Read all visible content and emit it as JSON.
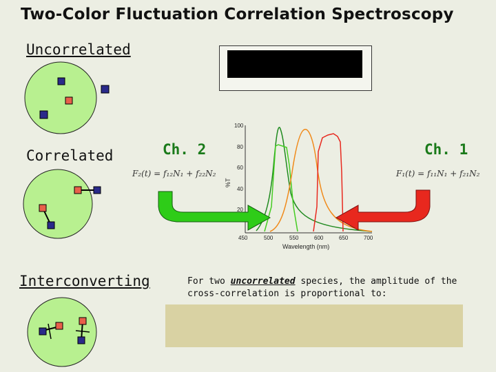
{
  "title": "Two-Color Fluctuation Correlation Spectroscopy",
  "labels": {
    "uncorrelated": "Uncorrelated",
    "correlated": "Correlated",
    "interconverting": "Interconverting"
  },
  "channels": {
    "ch2": "Ch. 2",
    "ch1": "Ch. 1"
  },
  "equations": {
    "f2": "F₂(t) = f₁₂N₁ + f₂₂N₂",
    "f1": "F₁(t) = f₁₁N₁ + f₂₁N₂"
  },
  "spectrum": {
    "yaxis_title": "%T",
    "xaxis_title": "Wavelength (nm)",
    "x_ticks": [
      "450",
      "500",
      "550",
      "600",
      "650",
      "700"
    ],
    "y_ticks": [
      "100",
      "80",
      "60",
      "40",
      "20"
    ]
  },
  "note": {
    "prefix": "For two ",
    "emphasis": "uncorrelated",
    "suffix": " species, the amplitude of the cross-correlation is proportional to:"
  },
  "colors": {
    "green": "#2ecc18",
    "red": "#e8281e",
    "blue_sq": "#2a2a8a",
    "red_sq": "#e8604a",
    "circle": "#b8f090"
  }
}
